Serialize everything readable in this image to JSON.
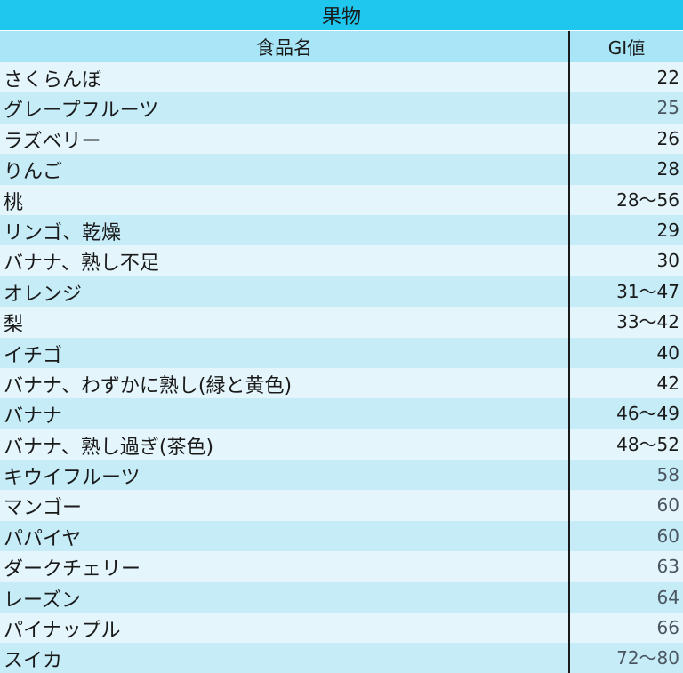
{
  "table": {
    "title": "果物",
    "header": {
      "name": "食品名",
      "gi": "GI値"
    },
    "rows": [
      {
        "name": "さくらんぼ",
        "gi": "22"
      },
      {
        "name": "グレープフルーツ",
        "gi": "25"
      },
      {
        "name": "ラズベリー",
        "gi": "26"
      },
      {
        "name": "りんご",
        "gi": "28"
      },
      {
        "name": "桃",
        "gi": "28〜56"
      },
      {
        "name": "リンゴ、乾燥",
        "gi": "29"
      },
      {
        "name": "バナナ、熟し不足",
        "gi": "30"
      },
      {
        "name": "オレンジ",
        "gi": "31〜47"
      },
      {
        "name": "梨",
        "gi": "33〜42"
      },
      {
        "name": "イチゴ",
        "gi": "40"
      },
      {
        "name": "バナナ、わずかに熟し(緑と黄色)",
        "gi": "42"
      },
      {
        "name": "バナナ",
        "gi": "46〜49"
      },
      {
        "name": "バナナ、熟し過ぎ(茶色)",
        "gi": "48〜52"
      },
      {
        "name": "キウイフルーツ",
        "gi": "58"
      },
      {
        "name": "マンゴー",
        "gi": "60"
      },
      {
        "name": "パパイヤ",
        "gi": "60"
      },
      {
        "name": "ダークチェリー",
        "gi": "63"
      },
      {
        "name": "レーズン",
        "gi": "64"
      },
      {
        "name": "パイナップル",
        "gi": "66"
      },
      {
        "name": "スイカ",
        "gi": "72〜80"
      }
    ]
  },
  "colors": {
    "title_bg": "#1fc7ef",
    "header_bg": "#a8e6f7",
    "row_light": "#e4f6fc",
    "row_dark": "#c6ecf8"
  }
}
